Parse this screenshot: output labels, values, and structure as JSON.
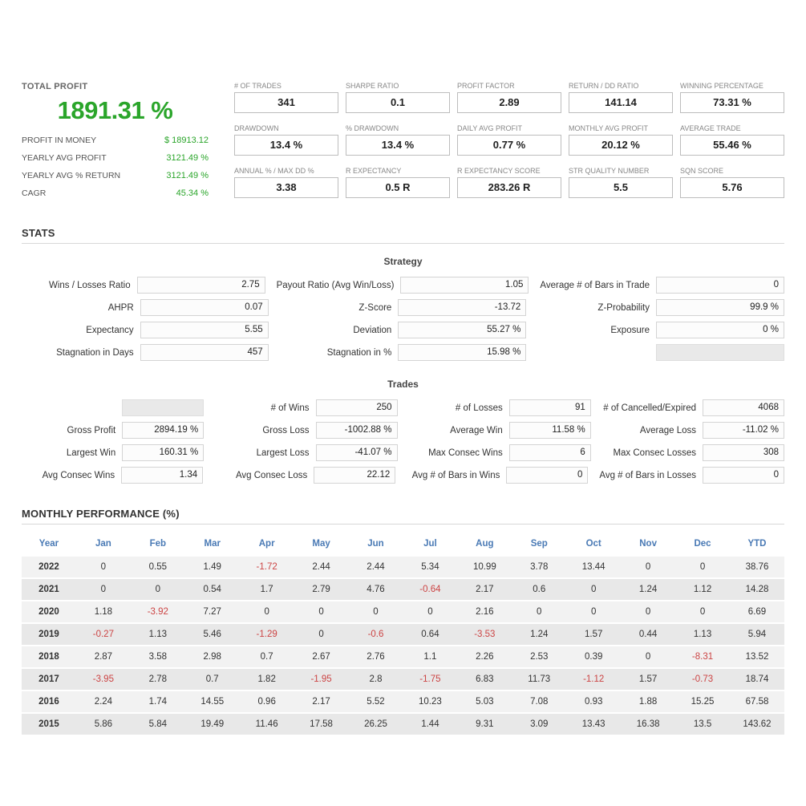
{
  "colors": {
    "profit_green": "#2aa52a",
    "negative_red": "#cc4444",
    "header_blue": "#4a7ab5"
  },
  "summary": {
    "title": "TOTAL PROFIT",
    "total_profit": "1891.31 %",
    "rows": [
      {
        "label": "PROFIT IN MONEY",
        "value": "$ 18913.12"
      },
      {
        "label": "YEARLY AVG PROFIT",
        "value": "3121.49 %"
      },
      {
        "label": "YEARLY AVG % RETURN",
        "value": "3121.49 %"
      },
      {
        "label": "CAGR",
        "value": "45.34 %"
      }
    ]
  },
  "metrics": [
    {
      "label": "# OF TRADES",
      "value": "341"
    },
    {
      "label": "SHARPE RATIO",
      "value": "0.1"
    },
    {
      "label": "PROFIT FACTOR",
      "value": "2.89"
    },
    {
      "label": "RETURN / DD RATIO",
      "value": "141.14"
    },
    {
      "label": "WINNING PERCENTAGE",
      "value": "73.31 %"
    },
    {
      "label": "DRAWDOWN",
      "value": "13.4 %"
    },
    {
      "label": "% DRAWDOWN",
      "value": "13.4 %"
    },
    {
      "label": "DAILY AVG PROFIT",
      "value": "0.77 %"
    },
    {
      "label": "MONTHLY AVG PROFIT",
      "value": "20.12 %"
    },
    {
      "label": "AVERAGE TRADE",
      "value": "55.46 %"
    },
    {
      "label": "ANNUAL % / MAX DD %",
      "value": "3.38"
    },
    {
      "label": "R EXPECTANCY",
      "value": "0.5 R"
    },
    {
      "label": "R EXPECTANCY SCORE",
      "value": "283.26 R"
    },
    {
      "label": "STR QUALITY NUMBER",
      "value": "5.5"
    },
    {
      "label": "SQN SCORE",
      "value": "5.76"
    }
  ],
  "stats": {
    "heading": "STATS",
    "subheading": "Strategy",
    "rows": [
      [
        {
          "label": "Wins / Losses Ratio",
          "value": "2.75"
        },
        {
          "label": "Payout Ratio (Avg Win/Loss)",
          "value": "1.05"
        },
        {
          "label": "Average # of Bars in Trade",
          "value": "0"
        }
      ],
      [
        {
          "label": "AHPR",
          "value": "0.07"
        },
        {
          "label": "Z-Score",
          "value": "-13.72"
        },
        {
          "label": "Z-Probability",
          "value": "99.9 %"
        }
      ],
      [
        {
          "label": "Expectancy",
          "value": "5.55"
        },
        {
          "label": "Deviation",
          "value": "55.27 %"
        },
        {
          "label": "Exposure",
          "value": "0 %"
        }
      ],
      [
        {
          "label": "Stagnation in Days",
          "value": "457"
        },
        {
          "label": "Stagnation in %",
          "value": "15.98 %"
        },
        {
          "label": "",
          "value": ""
        }
      ]
    ]
  },
  "trades": {
    "subheading": "Trades",
    "rows": [
      [
        {
          "label": "",
          "value": ""
        },
        {
          "label": "# of Wins",
          "value": "250"
        },
        {
          "label": "# of Losses",
          "value": "91"
        },
        {
          "label": "# of Cancelled/Expired",
          "value": "4068"
        }
      ],
      [
        {
          "label": "Gross Profit",
          "value": "2894.19 %"
        },
        {
          "label": "Gross Loss",
          "value": "-1002.88 %"
        },
        {
          "label": "Average Win",
          "value": "11.58 %"
        },
        {
          "label": "Average Loss",
          "value": "-11.02 %"
        }
      ],
      [
        {
          "label": "Largest Win",
          "value": "160.31 %"
        },
        {
          "label": "Largest Loss",
          "value": "-41.07 %"
        },
        {
          "label": "Max Consec Wins",
          "value": "6"
        },
        {
          "label": "Max Consec Losses",
          "value": "308"
        }
      ],
      [
        {
          "label": "Avg Consec Wins",
          "value": "1.34"
        },
        {
          "label": "Avg Consec Loss",
          "value": "22.12"
        },
        {
          "label": "Avg # of Bars in Wins",
          "value": "0"
        },
        {
          "label": "Avg # of Bars in Losses",
          "value": "0"
        }
      ]
    ]
  },
  "monthly": {
    "heading": "MONTHLY PERFORMANCE (%)",
    "columns": [
      "Year",
      "Jan",
      "Feb",
      "Mar",
      "Apr",
      "May",
      "Jun",
      "Jul",
      "Aug",
      "Sep",
      "Oct",
      "Nov",
      "Dec",
      "YTD"
    ],
    "rows": [
      {
        "year": "2022",
        "values": [
          "0",
          "0.55",
          "1.49",
          "-1.72",
          "2.44",
          "2.44",
          "5.34",
          "10.99",
          "3.78",
          "13.44",
          "0",
          "0",
          "38.76"
        ]
      },
      {
        "year": "2021",
        "values": [
          "0",
          "0",
          "0.54",
          "1.7",
          "2.79",
          "4.76",
          "-0.64",
          "2.17",
          "0.6",
          "0",
          "1.24",
          "1.12",
          "14.28"
        ]
      },
      {
        "year": "2020",
        "values": [
          "1.18",
          "-3.92",
          "7.27",
          "0",
          "0",
          "0",
          "0",
          "2.16",
          "0",
          "0",
          "0",
          "0",
          "6.69"
        ]
      },
      {
        "year": "2019",
        "values": [
          "-0.27",
          "1.13",
          "5.46",
          "-1.29",
          "0",
          "-0.6",
          "0.64",
          "-3.53",
          "1.24",
          "1.57",
          "0.44",
          "1.13",
          "5.94"
        ]
      },
      {
        "year": "2018",
        "values": [
          "2.87",
          "3.58",
          "2.98",
          "0.7",
          "2.67",
          "2.76",
          "1.1",
          "2.26",
          "2.53",
          "0.39",
          "0",
          "-8.31",
          "13.52"
        ]
      },
      {
        "year": "2017",
        "values": [
          "-3.95",
          "2.78",
          "0.7",
          "1.82",
          "-1.95",
          "2.8",
          "-1.75",
          "6.83",
          "11.73",
          "-1.12",
          "1.57",
          "-0.73",
          "18.74"
        ]
      },
      {
        "year": "2016",
        "values": [
          "2.24",
          "1.74",
          "14.55",
          "0.96",
          "2.17",
          "5.52",
          "10.23",
          "5.03",
          "7.08",
          "0.93",
          "1.88",
          "15.25",
          "67.58"
        ]
      },
      {
        "year": "2015",
        "values": [
          "5.86",
          "5.84",
          "19.49",
          "11.46",
          "17.58",
          "26.25",
          "1.44",
          "9.31",
          "3.09",
          "13.43",
          "16.38",
          "13.5",
          "143.62"
        ]
      }
    ]
  }
}
